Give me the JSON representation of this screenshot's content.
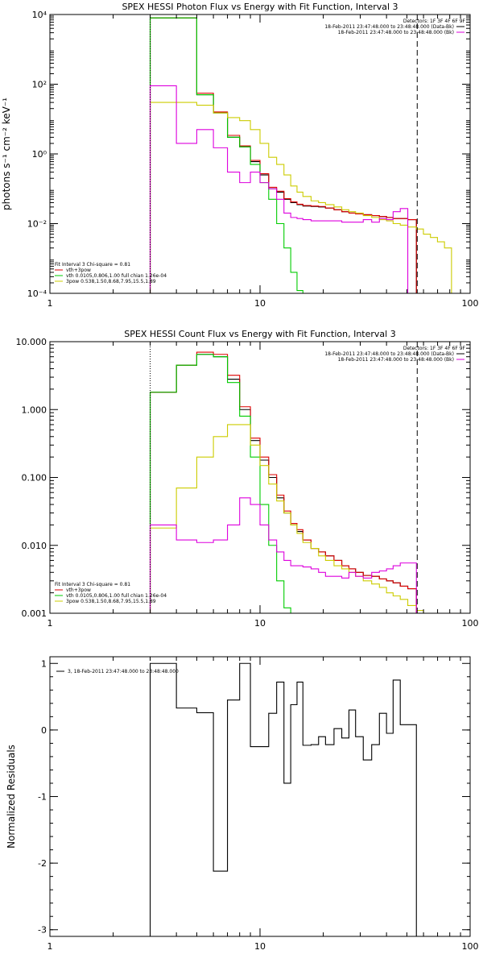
{
  "chart_data": [
    {
      "type": "line",
      "title": "SPEX HESSI Photon Flux vs Energy with Fit Function, Interval 3",
      "xlabel": "",
      "ylabel": "photons s⁻¹ cm⁻² keV⁻¹",
      "x_scale": "log",
      "y_scale": "log",
      "xlim": [
        1,
        100
      ],
      "ylim": [
        0.0001,
        10000
      ],
      "x_ticks": [
        1,
        10,
        100
      ],
      "x_tick_labels": [
        "1",
        "10",
        "100"
      ],
      "y_ticks": [
        0.0001,
        0.01,
        1,
        100,
        10000
      ],
      "y_tick_labels": [
        "10⁻⁴",
        "10⁻²",
        "10⁰",
        "10²",
        "10⁴"
      ],
      "vlines": [
        {
          "x": 3,
          "style": "dotted"
        },
        {
          "x": 56,
          "style": "dashed"
        }
      ],
      "legend_top_right": [
        {
          "text": "Detectors: 1F 3F 4F 6F 9F",
          "color": "#000000"
        },
        {
          "text": "18-Feb-2011 23:47:48.000 to 23:48:48.000 (Data-Bk)",
          "color": "#000000"
        },
        {
          "text": "18-Feb-2011 23:47:48.000 to 23:48:48.000 (Bk)",
          "color": "#dd00dd"
        }
      ],
      "legend_bottom_left": [
        {
          "text": "Fit Interval 3   Chi-square = 0.81",
          "color": "#000000"
        },
        {
          "text": "vth+3pow",
          "color": "#dd0000"
        },
        {
          "text": "vth 0.0105,0.806,1.00  full chian 1.26e-04",
          "color": "#00cc00"
        },
        {
          "text": "3pow 0.538,1.50,8.68,7.95,15.5,1.89",
          "color": "#cccc00"
        }
      ],
      "edges": [
        3,
        4,
        5,
        6,
        7,
        8,
        9,
        10,
        11,
        12,
        13,
        14,
        15,
        16,
        17.5,
        19,
        20.5,
        22.5,
        24.5,
        26.5,
        28.5,
        31,
        34,
        37,
        40,
        43,
        46.5,
        50.5,
        55.5
      ],
      "series": [
        {
          "color": "#000000",
          "values": [
            8000,
            8000,
            50,
            15,
            3.0,
            1.6,
            0.6,
            0.25,
            0.1,
            0.08,
            0.05,
            0.04,
            0.035,
            0.032,
            0.031,
            0.03,
            0.028,
            0.025,
            0.022,
            0.02,
            0.019,
            0.018,
            0.017,
            0.016,
            0.015,
            0.014,
            0.014,
            0.013
          ]
        },
        {
          "color": "#dd0000",
          "values": [
            8000,
            8000,
            55,
            16,
            3.4,
            1.7,
            0.65,
            0.27,
            0.11,
            0.085,
            0.052,
            0.042,
            0.036,
            0.033,
            0.032,
            0.031,
            0.028,
            0.025,
            0.022,
            0.02,
            0.019,
            0.018,
            0.017,
            0.016,
            0.015,
            0.014,
            0.014,
            0.013
          ]
        },
        {
          "color": "#00cc00",
          "values": [
            8000,
            8000,
            50,
            15,
            3.0,
            1.6,
            0.5,
            0.15,
            0.05,
            0.01,
            0.002,
            0.0004,
            0.00012
          ]
        },
        {
          "color": "#cccc00",
          "values": [
            30,
            30,
            25,
            15,
            11,
            9,
            5,
            2,
            0.8,
            0.5,
            0.25,
            0.12,
            0.08,
            0.06,
            0.045,
            0.04,
            0.035,
            0.03,
            0.025,
            0.022,
            0.02,
            0.017,
            0.015,
            0.013,
            0.012,
            0.01,
            0.009,
            0.008,
            0.007,
            0.005,
            0.004,
            0.003,
            0.002
          ]
        },
        {
          "color": "#dd00dd",
          "values": [
            90,
            2,
            5,
            1.5,
            0.3,
            0.15,
            0.3,
            0.15,
            0.1,
            0.05,
            0.02,
            0.015,
            0.014,
            0.013,
            0.012,
            0.012,
            0.012,
            0.012,
            0.011,
            0.011,
            0.011,
            0.013,
            0.011,
            0.014,
            0.013,
            0.022,
            0.027
          ]
        }
      ]
    },
    {
      "type": "line",
      "title": "SPEX HESSI Count Flux vs Energy with Fit Function, Interval 3",
      "xlabel": "",
      "ylabel": "",
      "x_scale": "log",
      "y_scale": "log",
      "xlim": [
        1,
        100
      ],
      "ylim": [
        0.001,
        10
      ],
      "x_ticks": [
        1,
        10,
        100
      ],
      "x_tick_labels": [
        "1",
        "10",
        "100"
      ],
      "y_ticks": [
        0.001,
        0.01,
        0.1,
        1,
        10
      ],
      "y_tick_labels": [
        "0.001",
        "0.010",
        "0.100",
        "1.000",
        "10.000"
      ],
      "vlines": [
        {
          "x": 3,
          "style": "dotted"
        },
        {
          "x": 56,
          "style": "dashed"
        }
      ],
      "legend_top_right": [
        {
          "text": "Detectors: 1F 3F 4F 6F 9F",
          "color": "#000000"
        },
        {
          "text": "18-Feb-2011 23:47:48.000 to 23:48:48.000 (Data-Bk)",
          "color": "#000000"
        },
        {
          "text": "18-Feb-2011 23:47:48.000 to 23:48:48.000 (Bk)",
          "color": "#dd00dd"
        }
      ],
      "legend_bottom_left": [
        {
          "text": "Fit Interval 3   Chi-square = 0.81",
          "color": "#000000"
        },
        {
          "text": "vth+3pow",
          "color": "#dd0000"
        },
        {
          "text": "vth 0.0105,0.806,1.00  full chian 1.26e-04",
          "color": "#00cc00"
        },
        {
          "text": "3pow 0.538,1.50,8.68,7.95,15.5,1.89",
          "color": "#cccc00"
        }
      ],
      "edges": [
        3,
        4,
        5,
        6,
        7,
        8,
        9,
        10,
        11,
        12,
        13,
        14,
        15,
        16,
        17.5,
        19,
        20.5,
        22.5,
        24.5,
        26.5,
        28.5,
        31,
        34,
        37,
        40,
        43,
        46.5,
        50.5,
        55.5
      ],
      "series": [
        {
          "color": "#000000",
          "values": [
            1.8,
            4.5,
            6.5,
            6.0,
            2.8,
            1.0,
            0.35,
            0.18,
            0.1,
            0.05,
            0.03,
            0.02,
            0.016,
            0.012,
            0.009,
            0.008,
            0.007,
            0.006,
            0.005,
            0.0045,
            0.004,
            0.0036,
            0.0035,
            0.0032,
            0.003,
            0.0028,
            0.0025,
            0.0023
          ]
        },
        {
          "color": "#dd0000",
          "values": [
            1.8,
            4.5,
            7.0,
            6.5,
            3.2,
            1.1,
            0.38,
            0.2,
            0.11,
            0.055,
            0.032,
            0.021,
            0.017,
            0.012,
            0.009,
            0.008,
            0.007,
            0.006,
            0.005,
            0.0045,
            0.004,
            0.0036,
            0.0035,
            0.0032,
            0.003,
            0.0028,
            0.0025,
            0.0023
          ]
        },
        {
          "color": "#00cc00",
          "values": [
            1.8,
            4.5,
            6.5,
            6.0,
            2.5,
            0.8,
            0.2,
            0.04,
            0.01,
            0.003,
            0.0012,
            0.0008
          ]
        },
        {
          "color": "#cccc00",
          "values": [
            0.018,
            0.07,
            0.2,
            0.4,
            0.6,
            0.6,
            0.3,
            0.15,
            0.08,
            0.045,
            0.03,
            0.02,
            0.015,
            0.011,
            0.009,
            0.007,
            0.006,
            0.005,
            0.0045,
            0.004,
            0.0035,
            0.003,
            0.0027,
            0.0024,
            0.002,
            0.0018,
            0.0016,
            0.0013,
            0.0011,
            0.0009
          ]
        },
        {
          "color": "#dd00dd",
          "values": [
            0.02,
            0.012,
            0.011,
            0.012,
            0.02,
            0.05,
            0.04,
            0.02,
            0.012,
            0.008,
            0.006,
            0.005,
            0.005,
            0.0048,
            0.0045,
            0.004,
            0.0035,
            0.0035,
            0.0033,
            0.004,
            0.0035,
            0.0033,
            0.004,
            0.0042,
            0.0045,
            0.005,
            0.0055,
            0.0055
          ]
        }
      ]
    },
    {
      "type": "line",
      "title": "",
      "xlabel": "",
      "ylabel": "Normalized Residuals",
      "x_scale": "log",
      "y_scale": "linear",
      "xlim": [
        1,
        100
      ],
      "ylim": [
        -3.1,
        1.1
      ],
      "x_ticks": [
        1,
        10,
        100
      ],
      "x_tick_labels": [
        "1",
        "10",
        "100"
      ],
      "y_ticks": [
        -3,
        -2,
        -1,
        0,
        1
      ],
      "y_tick_labels": [
        "-3",
        "-2",
        "-1",
        "0",
        "1"
      ],
      "legend_top_left": [
        {
          "text": "3, 18-Feb-2011 23:47:48.000 to 23:48:48.000",
          "color": "#000000"
        }
      ],
      "edges": [
        3,
        4,
        5,
        6,
        7,
        8,
        9,
        10,
        11,
        12,
        13,
        14,
        15,
        16,
        17.5,
        19,
        20.5,
        22.5,
        24.5,
        26.5,
        28.5,
        31,
        34,
        37,
        40,
        43,
        46.5,
        50.5,
        55.5
      ],
      "series": [
        {
          "color": "#000000",
          "values": [
            1.0,
            0.33,
            0.26,
            -2.12,
            0.45,
            1.0,
            -0.25,
            -0.25,
            0.25,
            0.72,
            -0.8,
            0.38,
            0.72,
            -0.23,
            -0.22,
            -0.1,
            -0.22,
            0.02,
            -0.12,
            0.3,
            -0.1,
            -0.45,
            -0.22,
            0.25,
            -0.05,
            0.75,
            0.08,
            0.08
          ]
        }
      ]
    }
  ]
}
